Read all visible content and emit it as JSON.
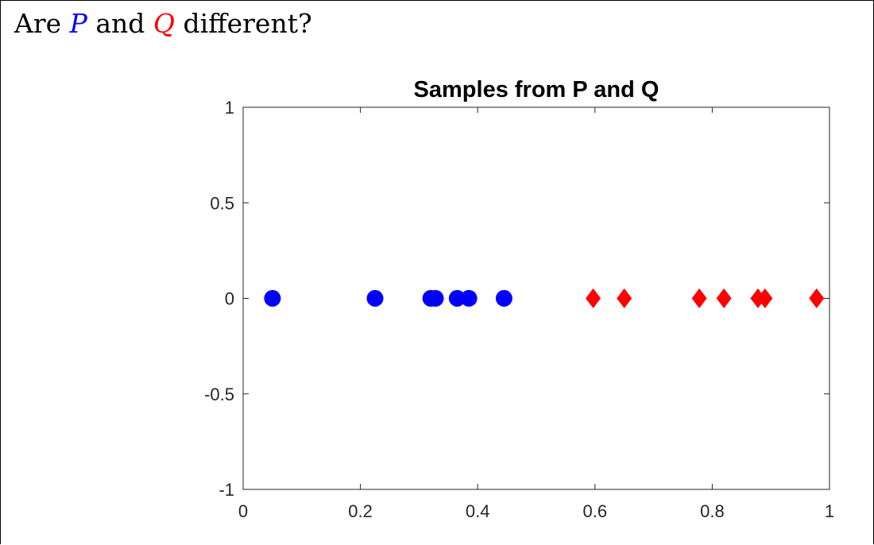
{
  "heading": {
    "prefix": "Are",
    "var_p": "P",
    "conj": "and",
    "var_q": "Q",
    "suffix": "different?",
    "p_color": "#0000ff",
    "q_color": "#ff0000"
  },
  "chart_data": {
    "type": "scatter",
    "title": "Samples from P and Q",
    "xlabel": "",
    "ylabel": "",
    "xlim": [
      0,
      1
    ],
    "ylim": [
      -1,
      1
    ],
    "xticks": [
      0,
      0.2,
      0.4,
      0.6,
      0.8,
      1
    ],
    "xtick_labels": [
      "0",
      "0.2",
      "0.4",
      "0.6",
      "0.8",
      "1"
    ],
    "yticks": [
      1,
      0.5,
      0,
      -0.5,
      -1
    ],
    "ytick_labels": [
      "1",
      "0.5",
      "0",
      "-0.5",
      "-1"
    ],
    "grid": false,
    "series": [
      {
        "marker": "circle",
        "color": "#0000ff",
        "points": [
          [
            0.05,
            0
          ],
          [
            0.225,
            0
          ],
          [
            0.32,
            0
          ],
          [
            0.328,
            0
          ],
          [
            0.365,
            0
          ],
          [
            0.385,
            0
          ],
          [
            0.445,
            0
          ]
        ]
      },
      {
        "marker": "diamond",
        "color": "#ff0000",
        "points": [
          [
            0.597,
            0
          ],
          [
            0.65,
            0
          ],
          [
            0.778,
            0
          ],
          [
            0.82,
            0
          ],
          [
            0.878,
            0
          ],
          [
            0.89,
            0
          ],
          [
            0.978,
            0
          ]
        ]
      }
    ]
  }
}
